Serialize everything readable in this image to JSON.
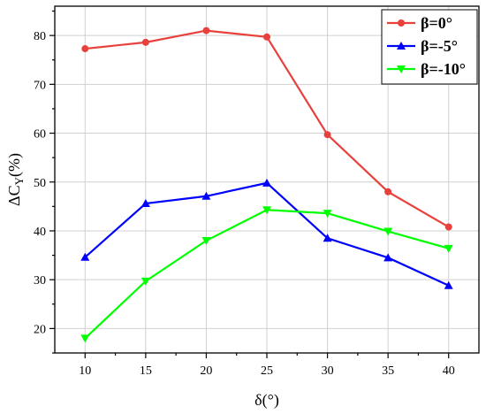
{
  "chart_data": {
    "type": "line",
    "x": [
      10,
      15,
      20,
      25,
      30,
      35,
      40
    ],
    "xlabel": "δ(°)",
    "ylabel_main": "ΔC",
    "ylabel_sub": "Y",
    "ylabel_tail": "(%)",
    "xlim": [
      7.5,
      42.5
    ],
    "ylim": [
      15,
      86
    ],
    "xticks": [
      10,
      15,
      20,
      25,
      30,
      35,
      40
    ],
    "yticks": [
      20,
      30,
      40,
      50,
      60,
      70,
      80
    ],
    "grid": true,
    "legend_position": "top-right",
    "series": [
      {
        "name": "β=0°",
        "color": "#e8413c",
        "marker": "circle",
        "values": [
          77.3,
          78.6,
          81.0,
          79.7,
          59.7,
          48.0,
          40.8
        ]
      },
      {
        "name": "β=-5°",
        "color": "#0000ff",
        "marker": "triangle-up",
        "values": [
          34.6,
          45.6,
          47.1,
          49.8,
          38.5,
          34.5,
          28.8
        ]
      },
      {
        "name": "β=-10°",
        "color": "#00ff00",
        "marker": "triangle-down",
        "values": [
          18.0,
          29.7,
          38.0,
          44.3,
          43.6,
          39.9,
          36.4
        ]
      }
    ]
  }
}
